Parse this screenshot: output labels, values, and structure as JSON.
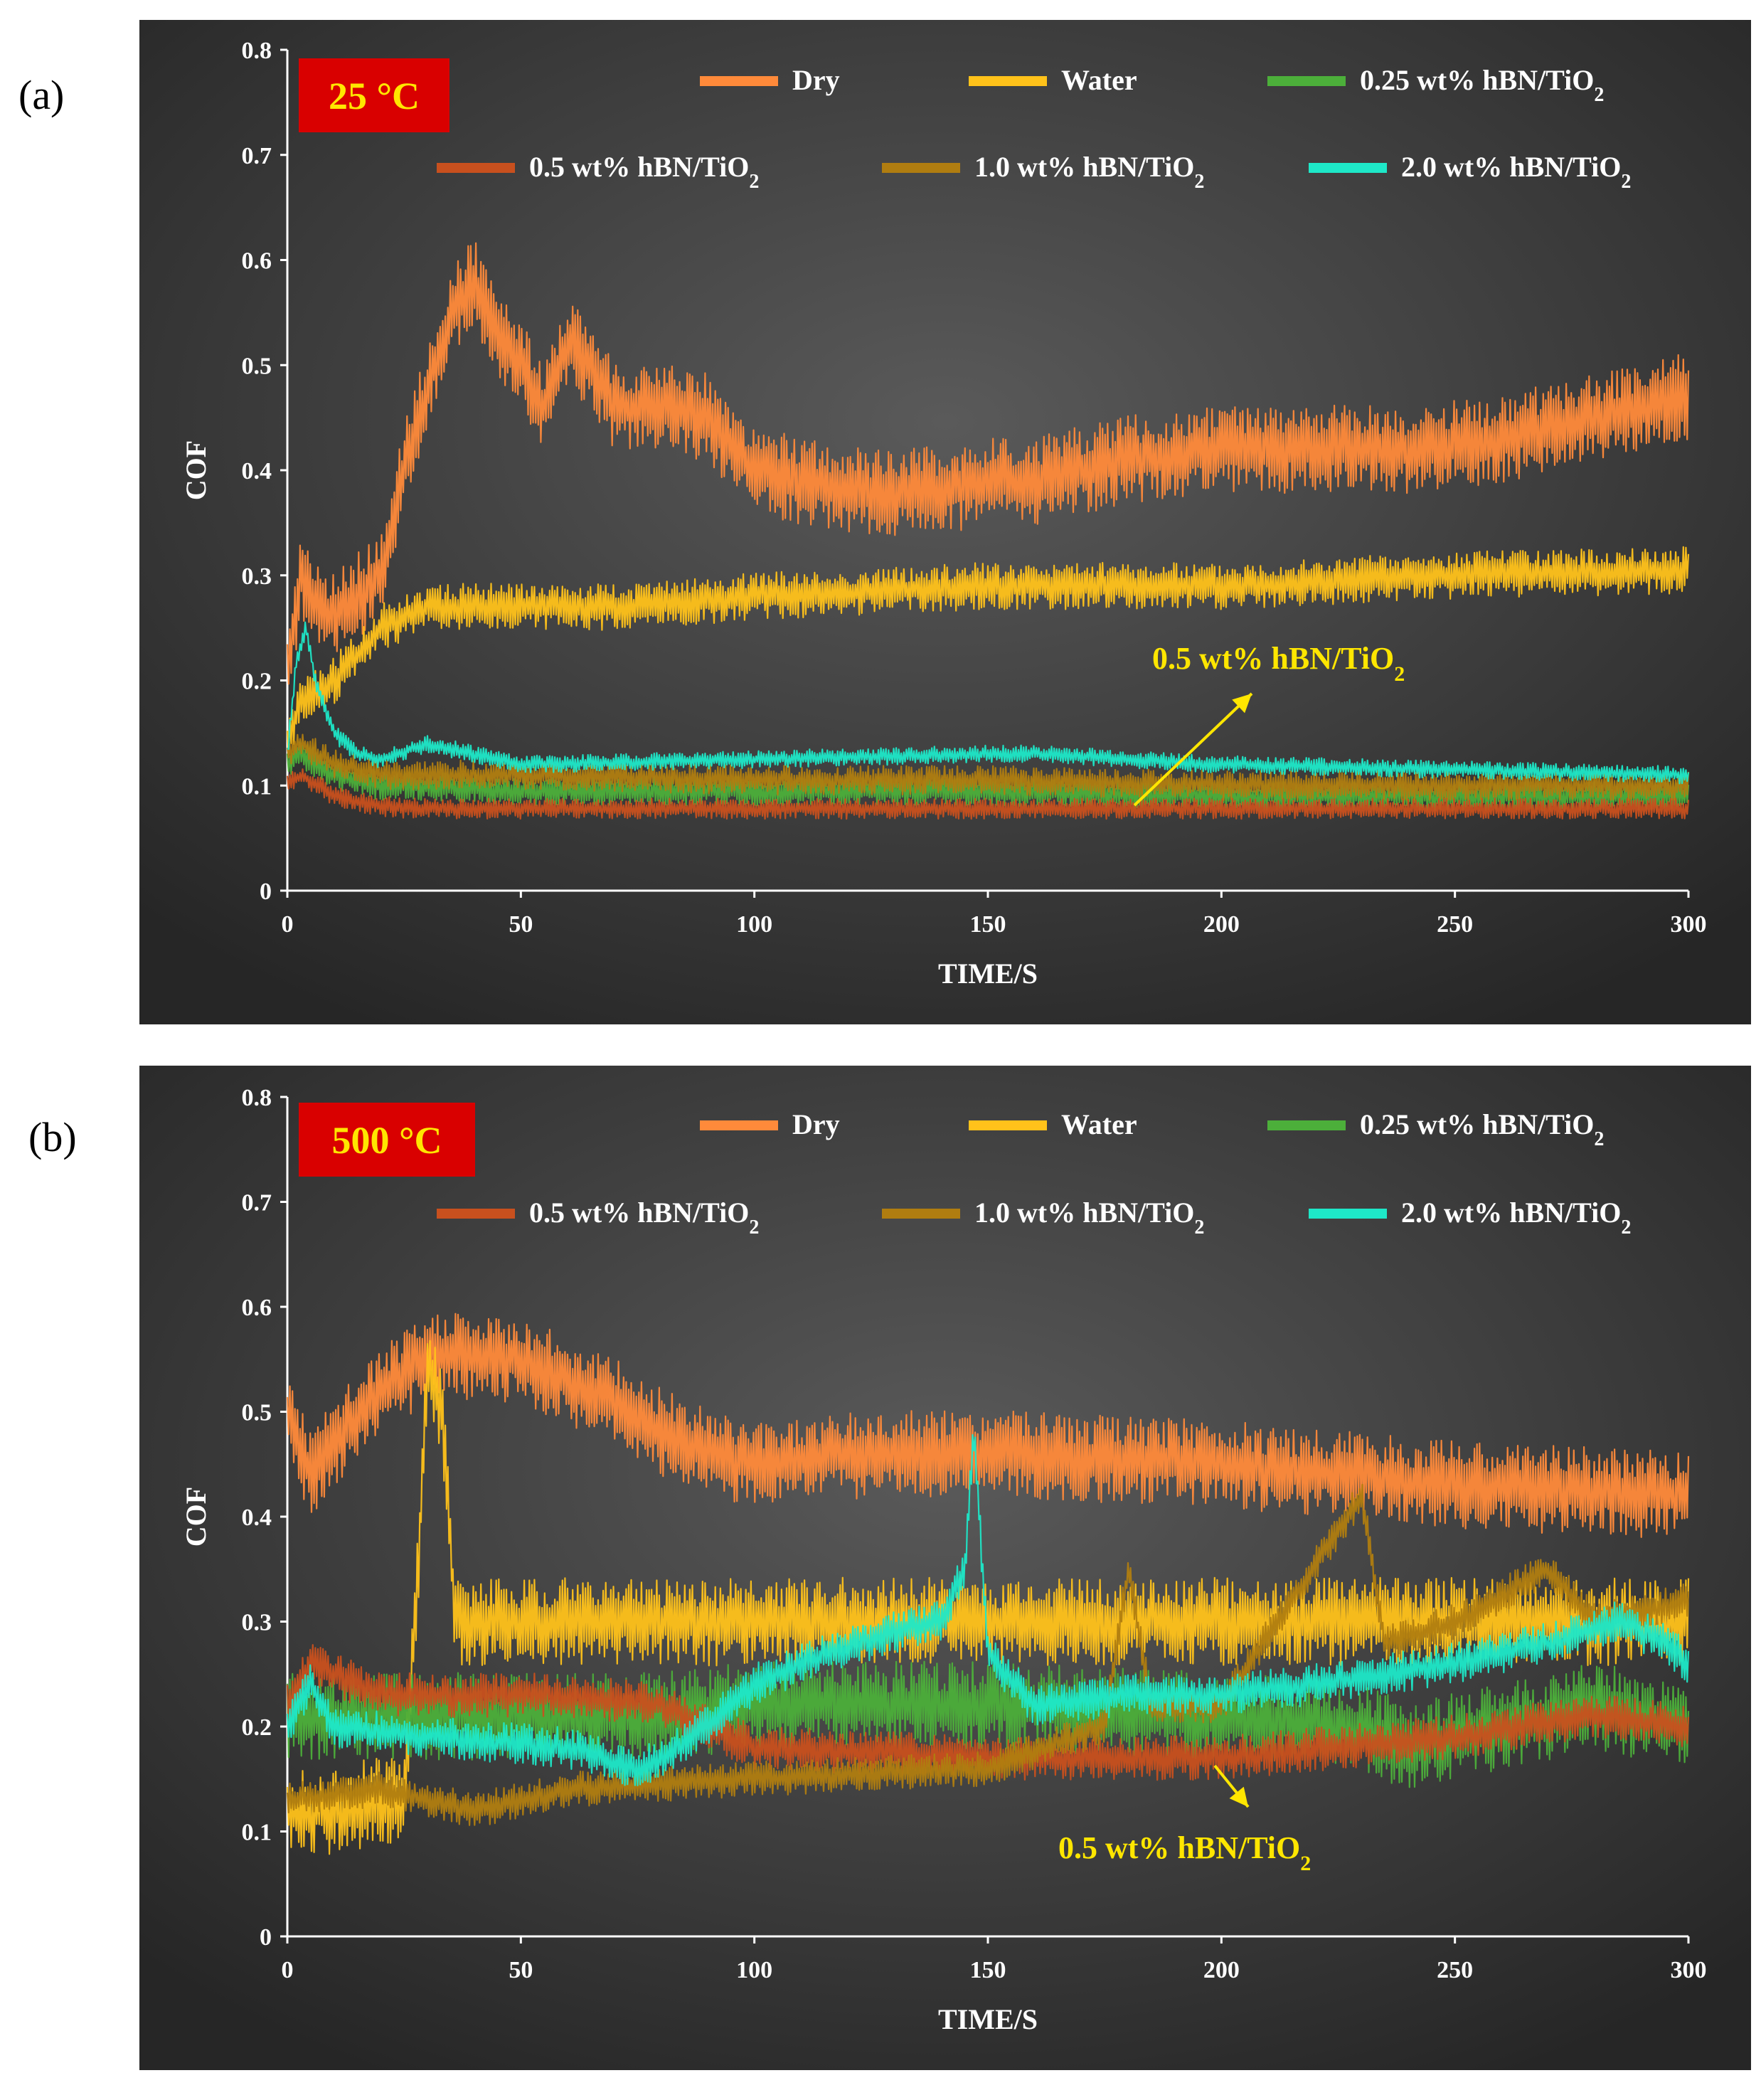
{
  "panels": [
    {
      "label": "(a)",
      "temperature": "25 °C",
      "annotation": "0.5 wt% hBN/TiO",
      "annotation_sub": "2",
      "chart_data": {
        "type": "line",
        "title": "",
        "xlabel": "TIME/S",
        "ylabel": "COF",
        "xlim": [
          0,
          300
        ],
        "ylim": [
          0,
          0.8
        ],
        "xticks": [
          "0",
          "50",
          "100",
          "150",
          "200",
          "250",
          "300"
        ],
        "yticks": [
          "0",
          "0.1",
          "0.2",
          "0.3",
          "0.4",
          "0.5",
          "0.6",
          "0.7",
          "0.8"
        ],
        "series": [
          {
            "name": "Dry",
            "label": "Dry",
            "sub": "",
            "color": "#ff8a3a",
            "noise": 0.03,
            "x": [
              0,
              3,
              8,
              15,
              20,
              25,
              30,
              35,
              40,
              45,
              50,
              55,
              60,
              65,
              70,
              80,
              90,
              100,
              110,
              120,
              130,
              140,
              150,
              160,
              170,
              180,
              200,
              220,
              240,
              260,
              280,
              290,
              300
            ],
            "values": [
              0.22,
              0.3,
              0.26,
              0.28,
              0.3,
              0.4,
              0.48,
              0.55,
              0.58,
              0.53,
              0.5,
              0.46,
              0.52,
              0.5,
              0.46,
              0.46,
              0.45,
              0.4,
              0.39,
              0.38,
              0.38,
              0.38,
              0.39,
              0.39,
              0.4,
              0.41,
              0.42,
              0.42,
              0.42,
              0.43,
              0.45,
              0.46,
              0.47
            ]
          },
          {
            "name": "Water",
            "label": "Water",
            "sub": "",
            "color": "#ffc21a",
            "noise": 0.016,
            "x": [
              0,
              3,
              10,
              20,
              25,
              30,
              40,
              50,
              75,
              100,
              150,
              200,
              250,
              300
            ],
            "values": [
              0.14,
              0.18,
              0.2,
              0.25,
              0.26,
              0.27,
              0.27,
              0.27,
              0.27,
              0.28,
              0.29,
              0.29,
              0.3,
              0.305
            ]
          },
          {
            "name": "0.25 wt% hBN/TiO2",
            "label": "0.25 wt% hBN/TiO",
            "sub": "2",
            "color": "#4caf3a",
            "noise": 0.01,
            "x": [
              0,
              3,
              10,
              20,
              30,
              50,
              100,
              150,
              200,
              250,
              300
            ],
            "values": [
              0.12,
              0.13,
              0.11,
              0.1,
              0.1,
              0.095,
              0.095,
              0.095,
              0.09,
              0.09,
              0.09
            ]
          },
          {
            "name": "0.5 wt% hBN/TiO2",
            "label": "0.5 wt% hBN/TiO",
            "sub": "2",
            "color": "#c8501e",
            "noise": 0.007,
            "x": [
              0,
              3,
              10,
              20,
              30,
              50,
              100,
              150,
              200,
              250,
              300
            ],
            "values": [
              0.1,
              0.11,
              0.09,
              0.08,
              0.078,
              0.078,
              0.078,
              0.078,
              0.078,
              0.078,
              0.078
            ]
          },
          {
            "name": "1.0 wt% hBN/TiO2",
            "label": "1.0 wt% hBN/TiO",
            "sub": "2",
            "color": "#b07d10",
            "noise": 0.01,
            "x": [
              0,
              3,
              10,
              20,
              30,
              50,
              100,
              150,
              200,
              250,
              300
            ],
            "values": [
              0.13,
              0.14,
              0.12,
              0.11,
              0.11,
              0.11,
              0.105,
              0.105,
              0.1,
              0.1,
              0.1
            ]
          },
          {
            "name": "2.0 wt% hBN/TiO2",
            "label": "2.0 wt% hBN/TiO",
            "sub": "2",
            "color": "#1ee8c8",
            "noise": 0.006,
            "x": [
              0,
              2,
              4,
              6,
              10,
              15,
              20,
              30,
              40,
              50,
              100,
              150,
              160,
              200,
              250,
              300
            ],
            "values": [
              0.13,
              0.22,
              0.25,
              0.2,
              0.15,
              0.13,
              0.125,
              0.14,
              0.13,
              0.12,
              0.125,
              0.13,
              0.13,
              0.12,
              0.115,
              0.11
            ]
          }
        ]
      }
    },
    {
      "label": "(b)",
      "temperature": "500 °C",
      "annotation": "0.5 wt% hBN/TiO",
      "annotation_sub": "2",
      "chart_data": {
        "type": "line",
        "title": "",
        "xlabel": "TIME/S",
        "ylabel": "COF",
        "xlim": [
          0,
          300
        ],
        "ylim": [
          0,
          0.8
        ],
        "xticks": [
          "0",
          "50",
          "100",
          "150",
          "200",
          "250",
          "300"
        ],
        "yticks": [
          "0",
          "0.1",
          "0.2",
          "0.3",
          "0.4",
          "0.5",
          "0.6",
          "0.7",
          "0.8"
        ],
        "series": [
          {
            "name": "Dry",
            "label": "Dry",
            "sub": "",
            "color": "#ff8a3a",
            "noise": 0.03,
            "x": [
              0,
              5,
              10,
              20,
              30,
              35,
              40,
              50,
              60,
              70,
              80,
              90,
              100,
              125,
              150,
              200,
              250,
              300
            ],
            "values": [
              0.5,
              0.44,
              0.47,
              0.52,
              0.55,
              0.56,
              0.55,
              0.55,
              0.53,
              0.51,
              0.48,
              0.46,
              0.45,
              0.46,
              0.46,
              0.45,
              0.43,
              0.42
            ]
          },
          {
            "name": "Water",
            "label": "Water",
            "sub": "",
            "color": "#ffc21a",
            "noise": 0.03,
            "x": [
              0,
              10,
              20,
              25,
              28,
              30,
              33,
              36,
              40,
              60,
              100,
              150,
              200,
              250,
              300
            ],
            "values": [
              0.12,
              0.12,
              0.13,
              0.13,
              0.35,
              0.55,
              0.5,
              0.3,
              0.3,
              0.3,
              0.3,
              0.3,
              0.3,
              0.3,
              0.3
            ]
          },
          {
            "name": "0.25 wt% hBN/TiO2",
            "label": "0.25 wt% hBN/TiO",
            "sub": "2",
            "color": "#4caf3a",
            "noise": 0.03,
            "x": [
              0,
              20,
              50,
              80,
              100,
              150,
              200,
              230,
              240,
              260,
              280,
              300
            ],
            "values": [
              0.21,
              0.21,
              0.21,
              0.21,
              0.22,
              0.22,
              0.21,
              0.2,
              0.18,
              0.2,
              0.22,
              0.2
            ]
          },
          {
            "name": "0.5 wt% hBN/TiO2",
            "label": "0.5 wt% hBN/TiO",
            "sub": "2",
            "color": "#c8501e",
            "noise": 0.015,
            "x": [
              0,
              5,
              20,
              40,
              60,
              80,
              100,
              150,
              200,
              250,
              280,
              300
            ],
            "values": [
              0.22,
              0.26,
              0.23,
              0.23,
              0.23,
              0.22,
              0.18,
              0.17,
              0.17,
              0.19,
              0.21,
              0.2
            ]
          },
          {
            "name": "1.0 wt% hBN/TiO2",
            "label": "1.0 wt% hBN/TiO",
            "sub": "2",
            "color": "#b07d10",
            "noise": 0.012,
            "x": [
              0,
              20,
              40,
              60,
              100,
              150,
              175,
              180,
              185,
              200,
              230,
              235,
              250,
              270,
              280,
              300
            ],
            "values": [
              0.13,
              0.14,
              0.12,
              0.14,
              0.15,
              0.16,
              0.2,
              0.35,
              0.22,
              0.22,
              0.42,
              0.28,
              0.3,
              0.35,
              0.3,
              0.32
            ]
          },
          {
            "name": "2.0 wt% hBN/TiO2",
            "label": "2.0 wt% hBN/TiO",
            "sub": "2",
            "color": "#1ee8c8",
            "noise": 0.014,
            "x": [
              0,
              5,
              10,
              30,
              60,
              75,
              80,
              90,
              100,
              110,
              130,
              140,
              145,
              147,
              150,
              160,
              180,
              200,
              220,
              250,
              270,
              285,
              295,
              300
            ],
            "values": [
              0.2,
              0.24,
              0.2,
              0.19,
              0.18,
              0.16,
              0.17,
              0.2,
              0.24,
              0.26,
              0.29,
              0.3,
              0.35,
              0.48,
              0.27,
              0.22,
              0.23,
              0.23,
              0.24,
              0.26,
              0.28,
              0.3,
              0.28,
              0.26
            ]
          }
        ]
      }
    }
  ]
}
